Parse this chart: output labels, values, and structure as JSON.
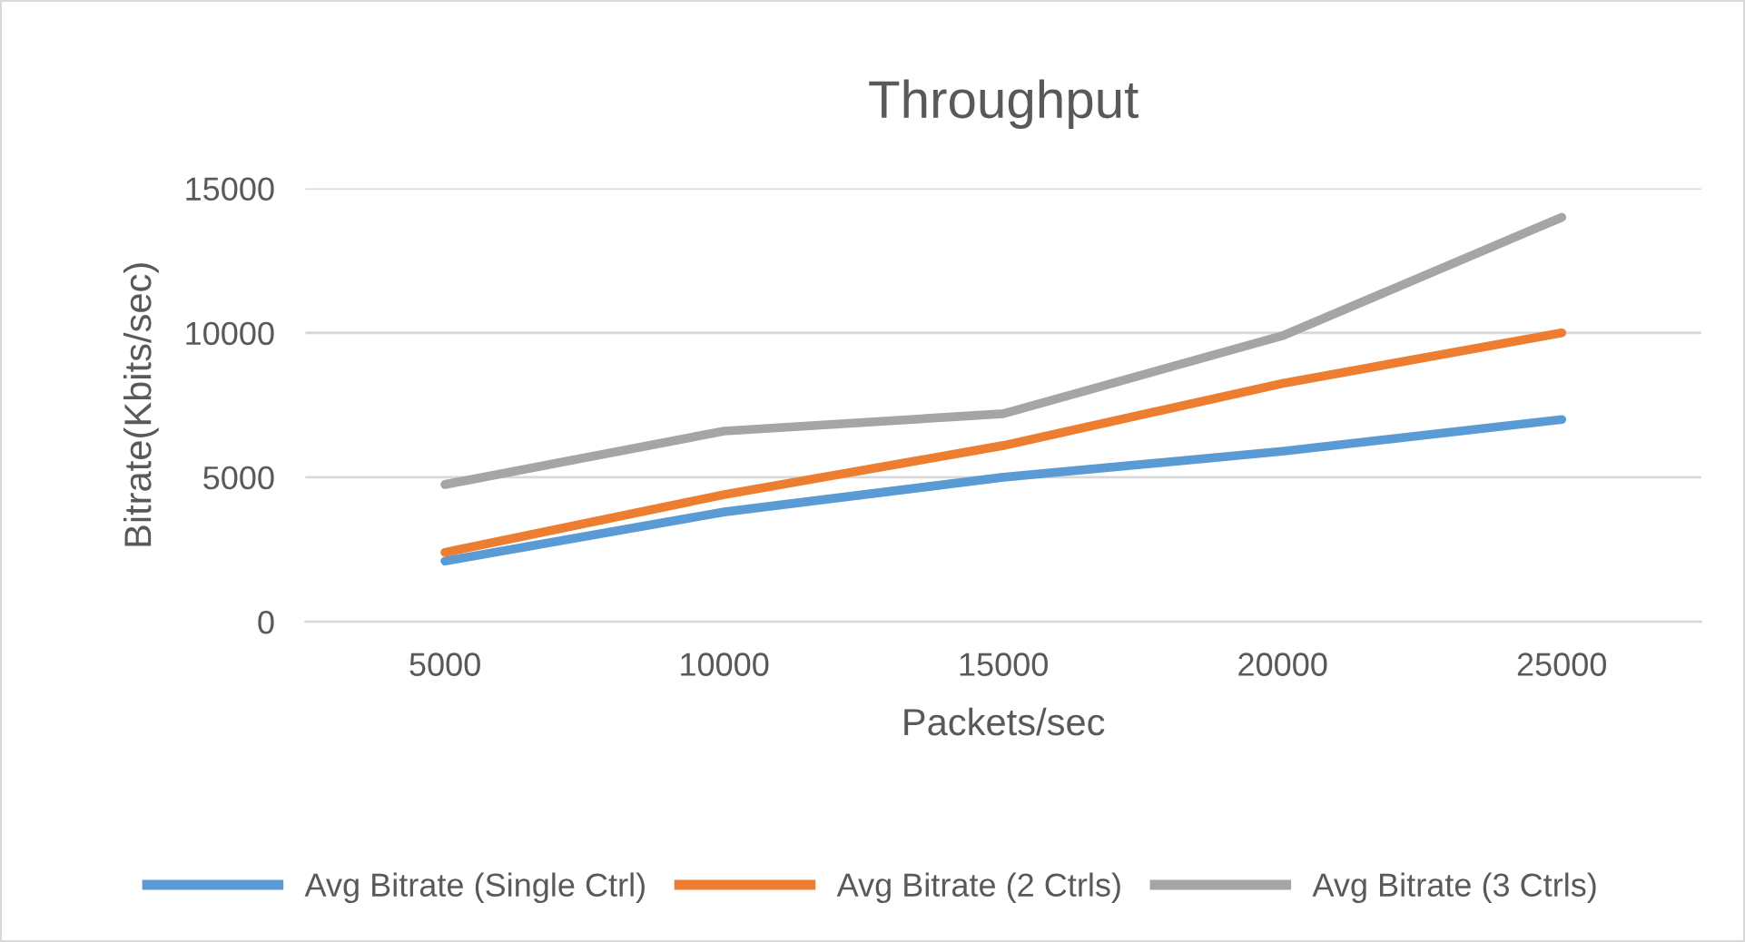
{
  "chart_data": {
    "type": "line",
    "title": "Throughput",
    "xlabel": "Packets/sec",
    "ylabel": "Bitrate(Kbits/sec)",
    "categories": [
      "5000",
      "10000",
      "15000",
      "20000",
      "25000"
    ],
    "series": [
      {
        "name": "Avg Bitrate (Single Ctrl)",
        "color": "#5b9bd5",
        "values": [
          2100,
          3800,
          5000,
          5900,
          7000
        ]
      },
      {
        "name": "Avg Bitrate (2 Ctrls)",
        "color": "#ed7d31",
        "values": [
          2400,
          4400,
          6100,
          8250,
          10000
        ]
      },
      {
        "name": "Avg Bitrate (3 Ctrls)",
        "color": "#a5a5a5",
        "values": [
          4750,
          6600,
          7200,
          9900,
          14000
        ]
      }
    ],
    "ylim": [
      0,
      15000
    ],
    "yticks": [
      0,
      5000,
      10000,
      15000
    ],
    "grid": "y",
    "legend": "bottom",
    "marker": "none",
    "line_style": "solid"
  }
}
